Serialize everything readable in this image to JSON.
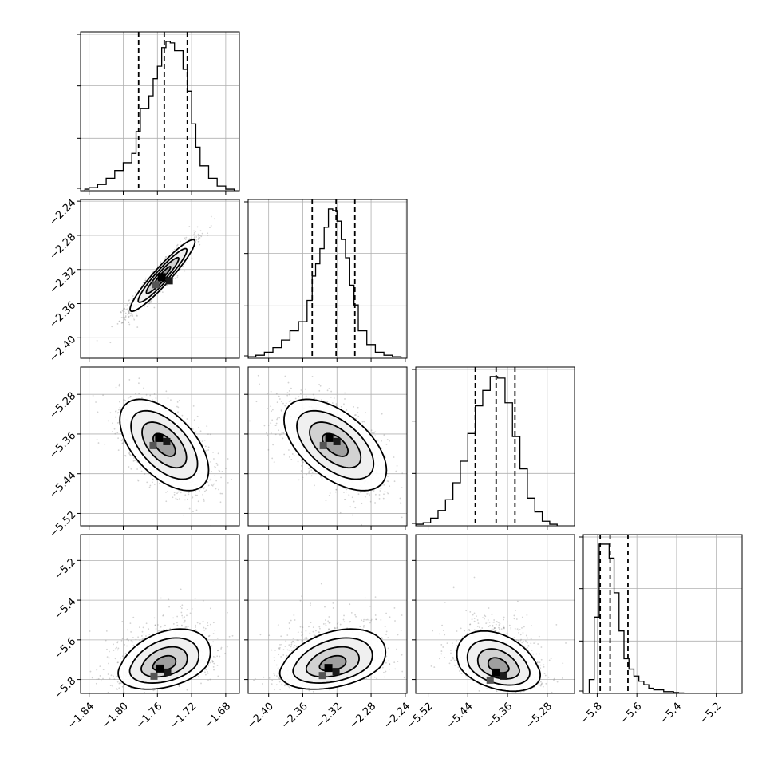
{
  "chart_data": {
    "type": "corner",
    "params": [
      {
        "label": "",
        "ticks": [
          -1.84,
          -1.8,
          -1.76,
          -1.72,
          -1.68
        ],
        "tick_labels": [
          "−1.84",
          "−1.80",
          "−1.76",
          "−1.72",
          "−1.68"
        ],
        "range": [
          -1.85,
          -1.664
        ],
        "quantiles": [
          -1.782,
          -1.752,
          -1.725
        ],
        "hist_bins": [
          -1.845,
          -1.84,
          -1.83,
          -1.82,
          -1.81,
          -1.8,
          -1.79,
          -1.785,
          -1.78,
          -1.77,
          -1.765,
          -1.76,
          -1.755,
          -1.75,
          -1.745,
          -1.74,
          -1.73,
          -1.725,
          -1.72,
          -1.715,
          -1.71,
          -1.7,
          -1.69,
          -1.68,
          -1.67
        ],
        "hist_heights": [
          0.01,
          0.02,
          0.04,
          0.08,
          0.13,
          0.18,
          0.24,
          0.38,
          0.53,
          0.61,
          0.72,
          0.8,
          0.92,
          0.96,
          0.95,
          0.9,
          0.78,
          0.64,
          0.43,
          0.28,
          0.16,
          0.08,
          0.03,
          0.01
        ]
      },
      {
        "label": "",
        "ticks": [
          -2.4,
          -2.36,
          -2.32,
          -2.28,
          -2.24
        ],
        "tick_labels": [
          "−2.40",
          "−2.36",
          "−2.32",
          "−2.28",
          "−2.24"
        ],
        "range": [
          -2.424,
          -2.238
        ],
        "quantiles": [
          -2.349,
          -2.321,
          -2.299
        ],
        "hist_bins": [
          -2.424,
          -2.415,
          -2.405,
          -2.395,
          -2.385,
          -2.375,
          -2.365,
          -2.355,
          -2.349,
          -2.345,
          -2.34,
          -2.335,
          -2.33,
          -2.325,
          -2.32,
          -2.315,
          -2.31,
          -2.305,
          -2.3,
          -2.295,
          -2.285,
          -2.275,
          -2.265,
          -2.255,
          -2.245
        ],
        "hist_heights": [
          0.01,
          0.02,
          0.04,
          0.07,
          0.12,
          0.18,
          0.24,
          0.38,
          0.54,
          0.62,
          0.72,
          0.86,
          0.98,
          0.97,
          0.9,
          0.78,
          0.66,
          0.48,
          0.35,
          0.18,
          0.09,
          0.04,
          0.02,
          0.01
        ]
      },
      {
        "label": "",
        "ticks": [
          -5.52,
          -5.44,
          -5.36,
          -5.28
        ],
        "tick_labels": [
          "−5.52",
          "−5.44",
          "−5.36",
          "−5.28"
        ],
        "range": [
          -5.545,
          -5.225
        ],
        "quantiles": [
          -5.425,
          -5.383,
          -5.345
        ],
        "hist_bins": [
          -5.545,
          -5.53,
          -5.515,
          -5.5,
          -5.485,
          -5.47,
          -5.455,
          -5.44,
          -5.425,
          -5.41,
          -5.395,
          -5.38,
          -5.365,
          -5.35,
          -5.335,
          -5.32,
          -5.305,
          -5.29,
          -5.275,
          -5.26
        ],
        "hist_heights": [
          0.01,
          0.02,
          0.05,
          0.1,
          0.17,
          0.28,
          0.42,
          0.6,
          0.78,
          0.88,
          0.97,
          0.96,
          0.8,
          0.58,
          0.37,
          0.18,
          0.09,
          0.03,
          0.01
        ]
      },
      {
        "label": "",
        "ticks": [
          -5.8,
          -5.6,
          -5.4,
          -5.2
        ],
        "tick_labels": [
          "−5.8",
          "−5.6",
          "−5.4",
          "−5.2"
        ],
        "range": [
          -5.87,
          -5.07
        ],
        "quantiles": [
          -5.785,
          -5.735,
          -5.645
        ],
        "hist_bins": [
          -5.84,
          -5.815,
          -5.79,
          -5.765,
          -5.74,
          -5.715,
          -5.69,
          -5.665,
          -5.64,
          -5.615,
          -5.59,
          -5.565,
          -5.54,
          -5.515,
          -5.49,
          -5.465,
          -5.44,
          -5.415,
          -5.39,
          -5.365,
          -5.34
        ],
        "hist_heights": [
          0.08,
          0.44,
          0.86,
          0.86,
          0.78,
          0.58,
          0.36,
          0.2,
          0.14,
          0.1,
          0.07,
          0.05,
          0.03,
          0.02,
          0.02,
          0.01,
          0.01,
          0.005,
          0.003,
          0.001
        ]
      }
    ],
    "pairs": [
      {
        "row": 1,
        "col": 0,
        "center": [
          -1.754,
          -2.327
        ],
        "sd": [
          0.019,
          0.021
        ],
        "rho": 0.94,
        "mode": [
          -1.755,
          -2.329
        ],
        "skew": 0
      },
      {
        "row": 2,
        "col": 0,
        "center": [
          -1.752,
          -5.382
        ],
        "sd": [
          0.026,
          0.046
        ],
        "rho": -0.55,
        "mode": [
          -1.758,
          -5.368
        ],
        "skew": 0
      },
      {
        "row": 2,
        "col": 1,
        "center": [
          -2.322,
          -5.382
        ],
        "sd": [
          0.03,
          0.046
        ],
        "rho": -0.55,
        "mode": [
          -2.329,
          -5.368
        ],
        "skew": 0
      },
      {
        "row": 3,
        "col": 0,
        "center": [
          -1.752,
          -5.725
        ],
        "sd": [
          0.027,
          0.062
        ],
        "rho": 0.35,
        "mode": [
          -1.757,
          -5.745
        ],
        "skew": 1
      },
      {
        "row": 3,
        "col": 1,
        "center": [
          -2.325,
          -5.725
        ],
        "sd": [
          0.031,
          0.062
        ],
        "rho": 0.35,
        "mode": [
          -2.33,
          -5.742
        ],
        "skew": 1
      },
      {
        "row": 3,
        "col": 2,
        "center": [
          -5.378,
          -5.735
        ],
        "sd": [
          0.042,
          0.062
        ],
        "rho": -0.35,
        "mode": [
          -5.383,
          -5.765
        ],
        "skew": 1
      }
    ],
    "contour_levels_sigma": [
      0.5,
      1.0,
      1.5,
      2.0
    ],
    "grid": true,
    "colors": {
      "line": "#000000",
      "points": "#7f7f7f",
      "grid": "#b0b0b0"
    }
  }
}
